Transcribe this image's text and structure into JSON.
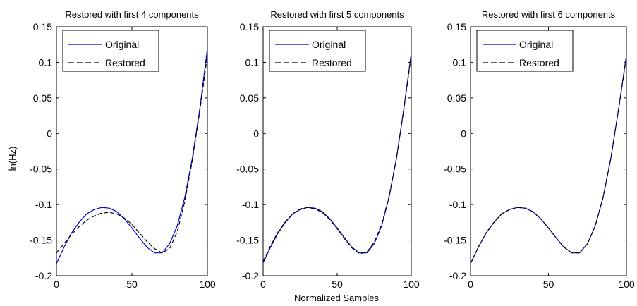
{
  "figure": {
    "xlabel": "Normalized Samples",
    "ylabel": "ln(Hz)",
    "colors": {
      "original": "#0000cc",
      "restored": "#000000",
      "axes": "#000000",
      "background": "#ffffff"
    }
  },
  "chart_data": [
    {
      "type": "line",
      "title": "Restored with first 4 components",
      "xlabel": "",
      "ylabel": "ln(Hz)",
      "xlim": [
        0,
        100
      ],
      "ylim": [
        -0.2,
        0.15
      ],
      "xticks": [
        "0",
        "50",
        "100"
      ],
      "yticks": [
        "-0.2",
        "-0.15",
        "-0.1",
        "-0.05",
        "0",
        "0.05",
        "0.1",
        "0.15"
      ],
      "legend_position": "top-left",
      "grid": false,
      "x": [
        0,
        5,
        10,
        15,
        20,
        25,
        30,
        35,
        40,
        45,
        50,
        55,
        60,
        65,
        70,
        75,
        80,
        85,
        90,
        95,
        100
      ],
      "series": [
        {
          "name": "Original",
          "style": "solid",
          "color": "#0000cc",
          "values": [
            -0.183,
            -0.16,
            -0.14,
            -0.125,
            -0.113,
            -0.107,
            -0.104,
            -0.105,
            -0.11,
            -0.12,
            -0.133,
            -0.147,
            -0.16,
            -0.168,
            -0.168,
            -0.155,
            -0.13,
            -0.09,
            -0.035,
            0.035,
            0.12
          ]
        },
        {
          "name": "Restored",
          "style": "dashed",
          "color": "#000000",
          "values": [
            -0.168,
            -0.155,
            -0.142,
            -0.131,
            -0.122,
            -0.116,
            -0.112,
            -0.111,
            -0.113,
            -0.119,
            -0.128,
            -0.14,
            -0.152,
            -0.162,
            -0.168,
            -0.162,
            -0.138,
            -0.096,
            -0.038,
            0.032,
            0.11
          ]
        }
      ]
    },
    {
      "type": "line",
      "title": "Restored with first 5 components",
      "xlabel": "Normalized Samples",
      "ylabel": "",
      "xlim": [
        0,
        100
      ],
      "ylim": [
        -0.2,
        0.15
      ],
      "xticks": [
        "0",
        "50",
        "100"
      ],
      "yticks": [
        "-0.2",
        "-0.15",
        "-0.1",
        "-0.05",
        "0",
        "0.05",
        "0.1",
        "0.15"
      ],
      "legend_position": "top-left",
      "grid": false,
      "x": [
        0,
        5,
        10,
        15,
        20,
        25,
        30,
        35,
        40,
        45,
        50,
        55,
        60,
        65,
        70,
        75,
        80,
        85,
        90,
        95,
        100
      ],
      "series": [
        {
          "name": "Original",
          "style": "solid",
          "color": "#0000cc",
          "values": [
            -0.182,
            -0.16,
            -0.14,
            -0.125,
            -0.113,
            -0.107,
            -0.104,
            -0.105,
            -0.11,
            -0.12,
            -0.133,
            -0.147,
            -0.16,
            -0.168,
            -0.168,
            -0.155,
            -0.13,
            -0.09,
            -0.035,
            0.035,
            0.113
          ]
        },
        {
          "name": "Restored",
          "style": "dashed",
          "color": "#000000",
          "values": [
            -0.18,
            -0.158,
            -0.139,
            -0.124,
            -0.113,
            -0.106,
            -0.104,
            -0.106,
            -0.111,
            -0.121,
            -0.134,
            -0.148,
            -0.161,
            -0.169,
            -0.167,
            -0.153,
            -0.128,
            -0.089,
            -0.035,
            0.034,
            0.11
          ]
        }
      ]
    },
    {
      "type": "line",
      "title": "Restored with first 6 components",
      "xlabel": "",
      "ylabel": "",
      "xlim": [
        0,
        100
      ],
      "ylim": [
        -0.2,
        0.15
      ],
      "xticks": [
        "0",
        "50",
        "100"
      ],
      "yticks": [
        "-0.2",
        "-0.15",
        "-0.1",
        "-0.05",
        "0",
        "0.05",
        "0.1",
        "0.15"
      ],
      "legend_position": "top-left",
      "grid": false,
      "x": [
        0,
        5,
        10,
        15,
        20,
        25,
        30,
        35,
        40,
        45,
        50,
        55,
        60,
        65,
        70,
        75,
        80,
        85,
        90,
        95,
        100
      ],
      "series": [
        {
          "name": "Original",
          "style": "solid",
          "color": "#0000cc",
          "values": [
            -0.183,
            -0.16,
            -0.14,
            -0.125,
            -0.113,
            -0.107,
            -0.104,
            -0.105,
            -0.11,
            -0.12,
            -0.133,
            -0.147,
            -0.16,
            -0.168,
            -0.168,
            -0.155,
            -0.13,
            -0.09,
            -0.035,
            0.035,
            0.11
          ]
        },
        {
          "name": "Restored",
          "style": "dashed",
          "color": "#000000",
          "values": [
            -0.183,
            -0.16,
            -0.14,
            -0.125,
            -0.113,
            -0.107,
            -0.104,
            -0.105,
            -0.11,
            -0.12,
            -0.133,
            -0.147,
            -0.16,
            -0.168,
            -0.168,
            -0.155,
            -0.13,
            -0.09,
            -0.035,
            0.035,
            0.108
          ]
        }
      ]
    }
  ]
}
